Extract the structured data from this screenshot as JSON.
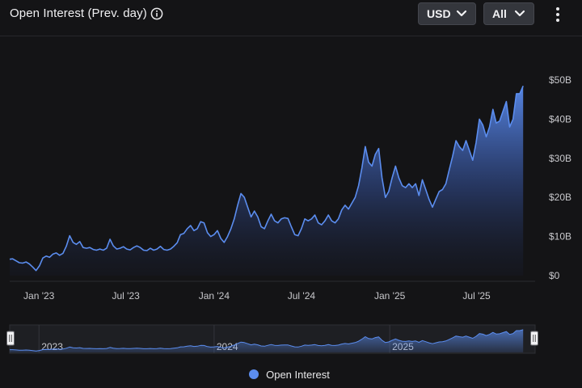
{
  "header": {
    "title": "Open Interest (Prev. day)",
    "currency_selected": "USD",
    "range_selected": "All"
  },
  "colors": {
    "accent": "#5b8def",
    "background": "#141416"
  },
  "icons": {
    "info": "info-icon",
    "dropdown": "chevron-down-icon",
    "menu": "kebab-menu-icon"
  },
  "chart_data": {
    "type": "area",
    "title": "Open Interest (Prev. day)",
    "xlabel": "",
    "ylabel": "",
    "y_unit": "USD",
    "ylim": [
      0,
      50
    ],
    "y_ticks": [
      0,
      10,
      20,
      30,
      40,
      50
    ],
    "y_tick_labels": [
      "$0",
      "$10B",
      "$20B",
      "$30B",
      "$40B",
      "$50B"
    ],
    "x_tick_dates": [
      "2023-01-01",
      "2023-07-01",
      "2024-01-01",
      "2024-07-01",
      "2025-01-01",
      "2025-07-01"
    ],
    "x_tick_labels": [
      "Jan '23",
      "Jul '23",
      "Jan '24",
      "Jul '24",
      "Jan '25",
      "Jul '25"
    ],
    "xlim": [
      "2022-11-01",
      "2025-10-31"
    ],
    "grid": false,
    "legend_position": "bottom-center",
    "series": [
      {
        "name": "Open Interest",
        "unit": "billion USD",
        "points": [
          [
            "2022-11-01",
            4.2
          ],
          [
            "2022-11-07",
            4.3
          ],
          [
            "2022-11-14",
            3.8
          ],
          [
            "2022-11-21",
            3.3
          ],
          [
            "2022-11-28",
            3.2
          ],
          [
            "2022-12-05",
            3.5
          ],
          [
            "2022-12-12",
            3.0
          ],
          [
            "2022-12-19",
            2.2
          ],
          [
            "2022-12-26",
            1.3
          ],
          [
            "2023-01-02",
            2.5
          ],
          [
            "2023-01-09",
            4.5
          ],
          [
            "2023-01-16",
            5.0
          ],
          [
            "2023-01-23",
            4.7
          ],
          [
            "2023-01-30",
            5.5
          ],
          [
            "2023-02-06",
            5.8
          ],
          [
            "2023-02-13",
            5.2
          ],
          [
            "2023-02-20",
            5.7
          ],
          [
            "2023-02-27",
            7.5
          ],
          [
            "2023-03-06",
            10.2
          ],
          [
            "2023-03-13",
            8.5
          ],
          [
            "2023-03-20",
            8.0
          ],
          [
            "2023-03-27",
            8.7
          ],
          [
            "2023-04-03",
            7.2
          ],
          [
            "2023-04-10",
            7.0
          ],
          [
            "2023-04-17",
            7.2
          ],
          [
            "2023-04-24",
            6.7
          ],
          [
            "2023-05-01",
            6.5
          ],
          [
            "2023-05-08",
            6.8
          ],
          [
            "2023-05-15",
            6.5
          ],
          [
            "2023-05-22",
            7.0
          ],
          [
            "2023-05-29",
            9.3
          ],
          [
            "2023-06-05",
            7.6
          ],
          [
            "2023-06-12",
            6.8
          ],
          [
            "2023-06-19",
            7.0
          ],
          [
            "2023-06-26",
            7.4
          ],
          [
            "2023-07-03",
            6.8
          ],
          [
            "2023-07-10",
            6.6
          ],
          [
            "2023-07-17",
            7.2
          ],
          [
            "2023-07-24",
            7.6
          ],
          [
            "2023-07-31",
            7.2
          ],
          [
            "2023-08-07",
            6.5
          ],
          [
            "2023-08-14",
            6.4
          ],
          [
            "2023-08-21",
            7.0
          ],
          [
            "2023-08-28",
            6.5
          ],
          [
            "2023-09-04",
            6.8
          ],
          [
            "2023-09-11",
            7.5
          ],
          [
            "2023-09-18",
            6.7
          ],
          [
            "2023-09-25",
            6.5
          ],
          [
            "2023-10-02",
            6.8
          ],
          [
            "2023-10-09",
            7.5
          ],
          [
            "2023-10-16",
            8.4
          ],
          [
            "2023-10-23",
            10.5
          ],
          [
            "2023-10-30",
            10.8
          ],
          [
            "2023-11-06",
            12.0
          ],
          [
            "2023-11-13",
            12.8
          ],
          [
            "2023-11-20",
            11.5
          ],
          [
            "2023-11-27",
            12.0
          ],
          [
            "2023-12-04",
            13.8
          ],
          [
            "2023-12-11",
            13.5
          ],
          [
            "2023-12-18",
            11.0
          ],
          [
            "2023-12-25",
            10.0
          ],
          [
            "2024-01-01",
            10.5
          ],
          [
            "2024-01-08",
            11.5
          ],
          [
            "2024-01-15",
            9.5
          ],
          [
            "2024-01-22",
            8.5
          ],
          [
            "2024-01-29",
            10.0
          ],
          [
            "2024-02-05",
            12.0
          ],
          [
            "2024-02-12",
            14.5
          ],
          [
            "2024-02-19",
            18.0
          ],
          [
            "2024-02-26",
            21.0
          ],
          [
            "2024-03-04",
            20.0
          ],
          [
            "2024-03-11",
            17.5
          ],
          [
            "2024-03-18",
            15.0
          ],
          [
            "2024-03-25",
            16.5
          ],
          [
            "2024-04-01",
            15.0
          ],
          [
            "2024-04-08",
            12.5
          ],
          [
            "2024-04-15",
            12.0
          ],
          [
            "2024-04-22",
            14.0
          ],
          [
            "2024-04-29",
            15.7
          ],
          [
            "2024-05-06",
            14.0
          ],
          [
            "2024-05-13",
            13.5
          ],
          [
            "2024-05-20",
            14.5
          ],
          [
            "2024-05-27",
            14.8
          ],
          [
            "2024-06-03",
            14.6
          ],
          [
            "2024-06-10",
            12.5
          ],
          [
            "2024-06-17",
            10.5
          ],
          [
            "2024-06-24",
            10.2
          ],
          [
            "2024-07-01",
            12.0
          ],
          [
            "2024-07-08",
            14.5
          ],
          [
            "2024-07-15",
            14.0
          ],
          [
            "2024-07-22",
            14.5
          ],
          [
            "2024-07-29",
            15.5
          ],
          [
            "2024-08-05",
            13.5
          ],
          [
            "2024-08-12",
            13.0
          ],
          [
            "2024-08-19",
            14.0
          ],
          [
            "2024-08-26",
            15.5
          ],
          [
            "2024-09-02",
            14.0
          ],
          [
            "2024-09-09",
            13.5
          ],
          [
            "2024-09-16",
            14.5
          ],
          [
            "2024-09-23",
            16.8
          ],
          [
            "2024-09-30",
            18.0
          ],
          [
            "2024-10-07",
            17.0
          ],
          [
            "2024-10-14",
            18.5
          ],
          [
            "2024-10-21",
            20.0
          ],
          [
            "2024-10-28",
            23.0
          ],
          [
            "2024-11-04",
            27.5
          ],
          [
            "2024-11-11",
            33.0
          ],
          [
            "2024-11-18",
            29.0
          ],
          [
            "2024-11-25",
            28.0
          ],
          [
            "2024-12-02",
            31.0
          ],
          [
            "2024-12-09",
            32.5
          ],
          [
            "2024-12-16",
            25.0
          ],
          [
            "2024-12-23",
            20.0
          ],
          [
            "2024-12-30",
            21.5
          ],
          [
            "2025-01-06",
            25.0
          ],
          [
            "2025-01-13",
            28.0
          ],
          [
            "2025-01-20",
            25.0
          ],
          [
            "2025-01-27",
            23.0
          ],
          [
            "2025-02-03",
            22.5
          ],
          [
            "2025-02-10",
            23.5
          ],
          [
            "2025-02-17",
            22.5
          ],
          [
            "2025-02-24",
            23.5
          ],
          [
            "2025-03-03",
            20.5
          ],
          [
            "2025-03-10",
            24.5
          ],
          [
            "2025-03-17",
            22.0
          ],
          [
            "2025-03-24",
            19.5
          ],
          [
            "2025-03-31",
            17.5
          ],
          [
            "2025-04-07",
            19.5
          ],
          [
            "2025-04-14",
            21.5
          ],
          [
            "2025-04-21",
            22.0
          ],
          [
            "2025-04-28",
            23.5
          ],
          [
            "2025-05-05",
            27.0
          ],
          [
            "2025-05-12",
            30.5
          ],
          [
            "2025-05-19",
            34.5
          ],
          [
            "2025-05-26",
            33.0
          ],
          [
            "2025-06-02",
            32.0
          ],
          [
            "2025-06-09",
            34.5
          ],
          [
            "2025-06-16",
            32.0
          ],
          [
            "2025-06-23",
            29.5
          ],
          [
            "2025-06-30",
            34.0
          ],
          [
            "2025-07-07",
            40.0
          ],
          [
            "2025-07-14",
            38.5
          ],
          [
            "2025-07-21",
            35.5
          ],
          [
            "2025-07-28",
            38.0
          ],
          [
            "2025-08-04",
            42.5
          ],
          [
            "2025-08-11",
            39.0
          ],
          [
            "2025-08-18",
            39.5
          ],
          [
            "2025-08-25",
            42.0
          ],
          [
            "2025-09-01",
            44.5
          ],
          [
            "2025-09-08",
            38.0
          ],
          [
            "2025-09-15",
            40.0
          ],
          [
            "2025-09-22",
            46.5
          ],
          [
            "2025-09-29",
            46.5
          ],
          [
            "2025-10-06",
            48.5
          ]
        ]
      }
    ]
  },
  "navigator": {
    "tick_dates": [
      "2023-01-01",
      "2024-01-01",
      "2025-01-01"
    ],
    "tick_labels": [
      "2023",
      "2024",
      "2025"
    ],
    "range": [
      "2022-11-01",
      "2025-10-31"
    ]
  },
  "legend": {
    "items": [
      {
        "label": "Open Interest",
        "color": "#5b8def"
      }
    ]
  }
}
